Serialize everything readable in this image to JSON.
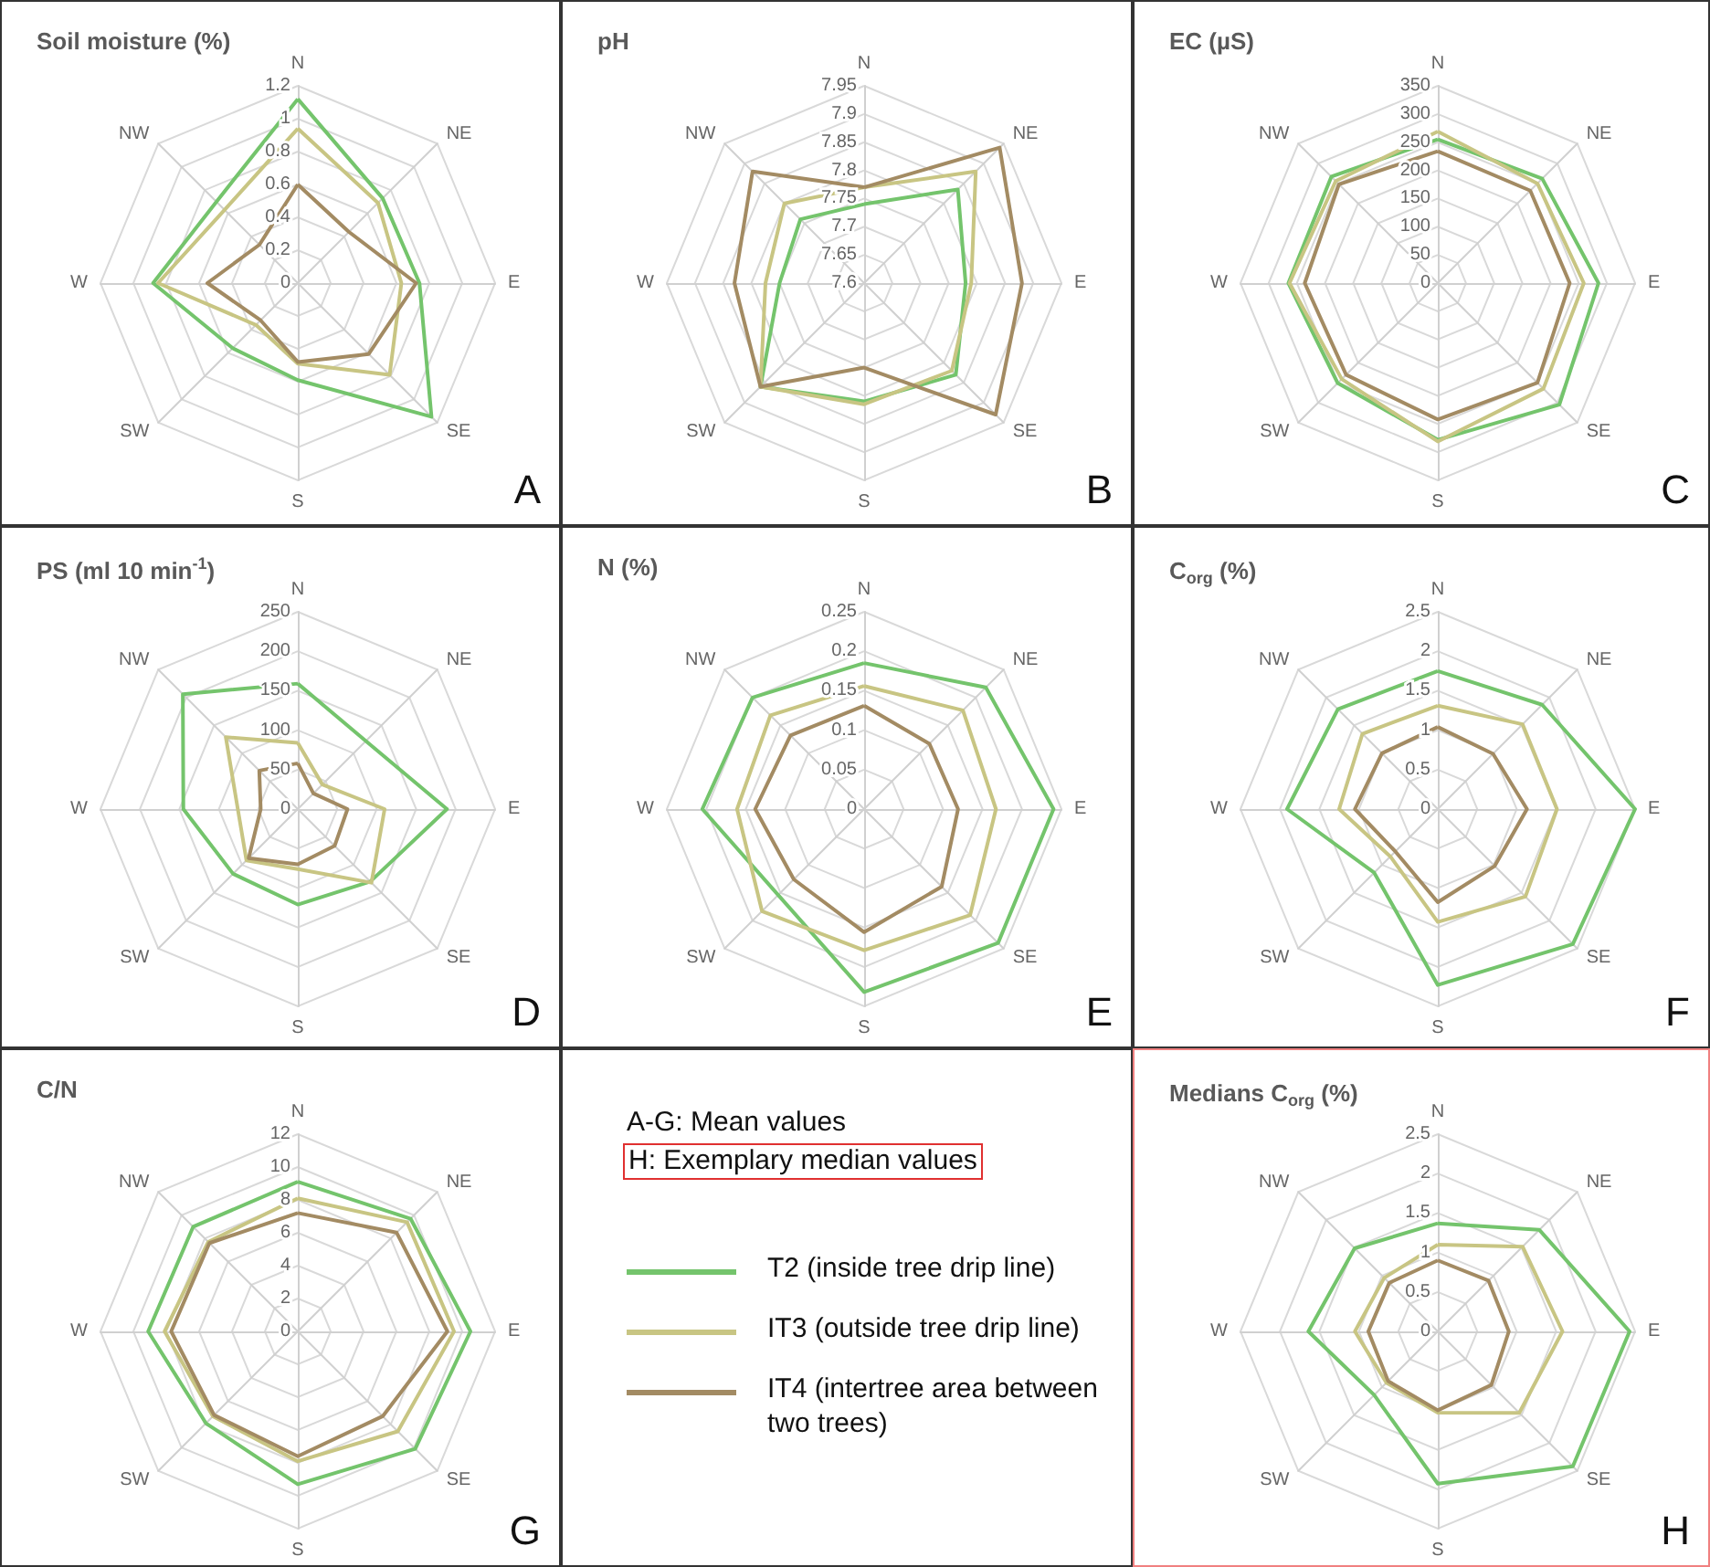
{
  "chart_data": [
    {
      "type": "radar",
      "title": "Soil moisture (%)",
      "categories": [
        "N",
        "NE",
        "E",
        "SE",
        "S",
        "SW",
        "W",
        "NW"
      ],
      "ylim": [
        0,
        1.2
      ],
      "yticks": [
        0,
        0.2,
        0.4,
        0.6,
        0.8,
        1,
        1.2
      ],
      "grid": true,
      "annotations": [
        "A"
      ],
      "series": [
        {
          "color": "#74c46c",
          "values": [
            1.12,
            0.73,
            0.74,
            1.15,
            0.59,
            0.56,
            0.88,
            0.7
          ]
        },
        {
          "color": "#c8c583",
          "values": [
            0.94,
            0.69,
            0.63,
            0.79,
            0.49,
            0.36,
            0.85,
            0.63
          ]
        },
        {
          "color": "#a38b63",
          "values": [
            0.6,
            0.44,
            0.72,
            0.61,
            0.48,
            0.32,
            0.55,
            0.33
          ]
        }
      ]
    },
    {
      "type": "radar",
      "title": "pH",
      "categories": [
        "N",
        "NE",
        "E",
        "SE",
        "S",
        "SW",
        "W",
        "NW"
      ],
      "ylim": [
        7.6,
        7.95
      ],
      "yticks": [
        7.6,
        7.65,
        7.7,
        7.75,
        7.8,
        7.85,
        7.9,
        7.95
      ],
      "grid": true,
      "annotations": [
        "B"
      ],
      "series": [
        {
          "color": "#74c46c",
          "values": [
            7.74,
            7.835,
            7.78,
            7.83,
            7.81,
            7.86,
            7.75,
            7.76
          ]
        },
        {
          "color": "#c8c583",
          "values": [
            7.77,
            7.88,
            7.79,
            7.82,
            7.815,
            7.86,
            7.775,
            7.8
          ]
        },
        {
          "color": "#a38b63",
          "values": [
            7.77,
            7.94,
            7.88,
            7.93,
            7.75,
            7.86,
            7.83,
            7.88
          ]
        }
      ]
    },
    {
      "type": "radar",
      "title": "EC (µS)",
      "categories": [
        "N",
        "NE",
        "E",
        "SE",
        "S",
        "SW",
        "W",
        "NW"
      ],
      "ylim": [
        0,
        350
      ],
      "yticks": [
        0,
        50,
        100,
        150,
        200,
        250,
        300,
        350
      ],
      "grid": true,
      "annotations": [
        "C"
      ],
      "series": [
        {
          "color": "#74c46c",
          "values": [
            255,
            262,
            285,
            305,
            278,
            251,
            265,
            267
          ]
        },
        {
          "color": "#c8c583",
          "values": [
            269,
            250,
            259,
            265,
            281,
            241,
            263,
            256
          ]
        },
        {
          "color": "#a38b63",
          "values": [
            234,
            232,
            234,
            250,
            242,
            230,
            236,
            248
          ]
        }
      ]
    },
    {
      "type": "radar",
      "title": "PS (ml 10 min$^{-1}$)",
      "categories": [
        "N",
        "NE",
        "E",
        "SE",
        "S",
        "SW",
        "W",
        "NW"
      ],
      "ylim": [
        0,
        250
      ],
      "yticks": [
        0,
        50,
        100,
        150,
        200,
        250
      ],
      "grid": true,
      "annotations": [
        "D"
      ],
      "series": [
        {
          "color": "#74c46c",
          "values": [
            159,
            122,
            189,
            130,
            121,
            116,
            145,
            206
          ]
        },
        {
          "color": "#c8c583",
          "values": [
            84,
            44,
            110,
            132,
            76,
            92,
            76,
            129
          ]
        },
        {
          "color": "#a38b63",
          "values": [
            58,
            28,
            63,
            66,
            70,
            88,
            47,
            69
          ]
        }
      ]
    },
    {
      "type": "radar",
      "title": "N (%)",
      "categories": [
        "N",
        "NE",
        "E",
        "SE",
        "S",
        "SW",
        "W",
        "NW"
      ],
      "ylim": [
        0,
        0.25
      ],
      "yticks": [
        0,
        0.05,
        0.1,
        0.15,
        0.2,
        0.25
      ],
      "grid": true,
      "annotations": [
        "E"
      ],
      "series": [
        {
          "color": "#74c46c",
          "values": [
            0.185,
            0.218,
            0.24,
            0.24,
            0.232,
            0.154,
            0.205,
            0.2
          ]
        },
        {
          "color": "#c8c583",
          "values": [
            0.156,
            0.177,
            0.167,
            0.19,
            0.179,
            0.183,
            0.161,
            0.168
          ]
        },
        {
          "color": "#a38b63",
          "values": [
            0.131,
            0.117,
            0.119,
            0.139,
            0.156,
            0.126,
            0.138,
            0.132
          ]
        }
      ]
    },
    {
      "type": "radar",
      "title": "C$_{org}$ (%)",
      "categories": [
        "N",
        "NE",
        "E",
        "SE",
        "S",
        "SW",
        "W",
        "NW"
      ],
      "ylim": [
        0,
        2.5
      ],
      "yticks": [
        0,
        0.5,
        1,
        1.5,
        2,
        2.5
      ],
      "grid": true,
      "annotations": [
        "F"
      ],
      "series": [
        {
          "color": "#74c46c",
          "values": [
            1.75,
            1.87,
            2.5,
            2.42,
            2.23,
            1.14,
            1.91,
            1.79
          ]
        },
        {
          "color": "#c8c583",
          "values": [
            1.31,
            1.52,
            1.51,
            1.57,
            1.43,
            0.85,
            1.25,
            1.35
          ]
        },
        {
          "color": "#a38b63",
          "values": [
            1.04,
            0.99,
            1.13,
            1.02,
            1.18,
            0.76,
            1.05,
            1.0
          ]
        }
      ]
    },
    {
      "type": "radar",
      "title": "C/N",
      "categories": [
        "N",
        "NE",
        "E",
        "SE",
        "S",
        "SW",
        "W",
        "NW"
      ],
      "ylim": [
        0,
        12
      ],
      "yticks": [
        0,
        2,
        4,
        6,
        8,
        10,
        12
      ],
      "grid": true,
      "annotations": [
        "G"
      ],
      "series": [
        {
          "color": "#74c46c",
          "values": [
            9.1,
            9.7,
            10.5,
            10.1,
            9.3,
            7.9,
            9.1,
            9.0
          ]
        },
        {
          "color": "#c8c583",
          "values": [
            8.1,
            9.4,
            9.5,
            8.6,
            7.9,
            7.3,
            8.1,
            7.7
          ]
        },
        {
          "color": "#a38b63",
          "values": [
            7.2,
            8.5,
            9.1,
            7.3,
            7.6,
            7.2,
            7.7,
            7.6
          ]
        }
      ]
    },
    {
      "type": "other",
      "annotations": [
        "A-G: Mean values",
        "H: Exemplary median values"
      ],
      "series": [
        {
          "name": "T2 (inside tree drip line)",
          "color": "#74c46c"
        },
        {
          "name": "IT3 (outside tree drip line)",
          "color": "#c8c583"
        },
        {
          "name": "IT4 (intertree area between two trees)",
          "color": "#a38b63"
        }
      ]
    },
    {
      "type": "radar",
      "title": "Medians C$_{org}$ (%)",
      "categories": [
        "N",
        "NE",
        "E",
        "SE",
        "S",
        "SW",
        "W",
        "NW"
      ],
      "ylim": [
        0,
        2.5
      ],
      "yticks": [
        0,
        0.5,
        1,
        1.5,
        2,
        2.5
      ],
      "grid": true,
      "annotations": [
        "H"
      ],
      "series": [
        {
          "color": "#74c46c",
          "values": [
            1.37,
            1.82,
            2.43,
            2.42,
            1.93,
            1.14,
            1.64,
            1.49
          ]
        },
        {
          "color": "#c8c583",
          "values": [
            1.1,
            1.52,
            1.58,
            1.46,
            1.03,
            0.92,
            1.05,
            0.96
          ]
        },
        {
          "color": "#a38b63",
          "values": [
            0.9,
            0.91,
            0.9,
            0.96,
            1.0,
            0.89,
            0.88,
            0.87
          ]
        }
      ]
    }
  ]
}
